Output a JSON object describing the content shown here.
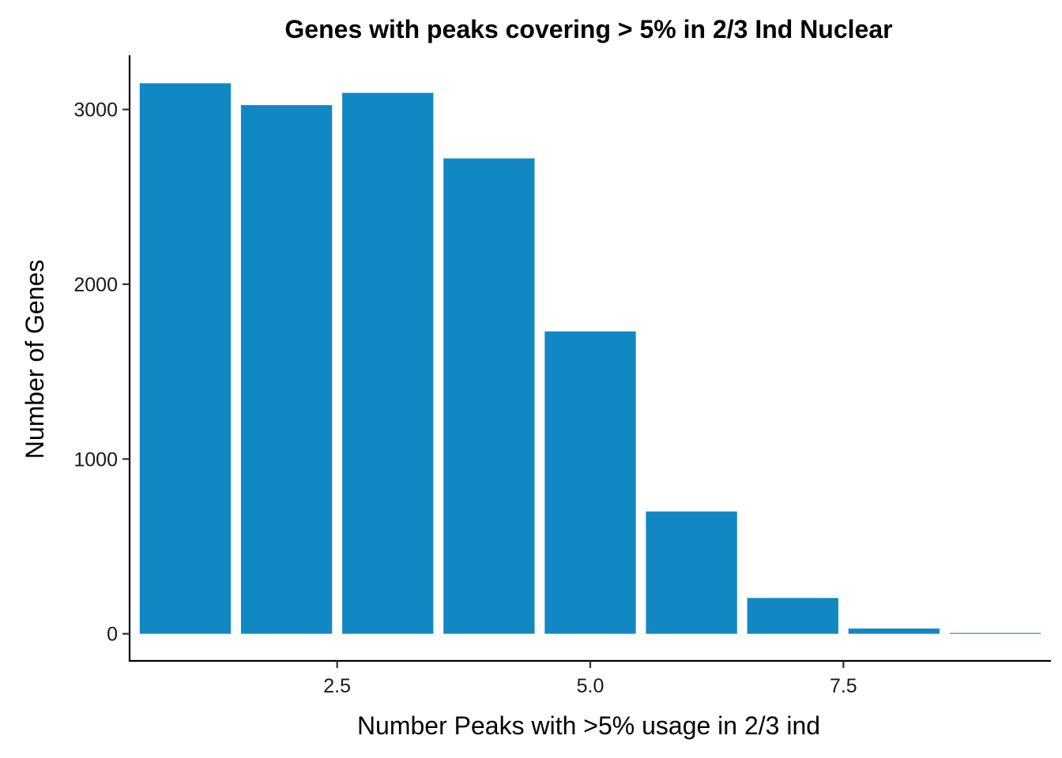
{
  "chart_data": {
    "type": "bar",
    "title": "Genes with peaks covering > 5% in 2/3 Ind Nuclear",
    "xlabel": "Number Peaks with >5% usage in 2/3 ind",
    "ylabel": "Number of Genes",
    "x": [
      1,
      2,
      3,
      4,
      5,
      6,
      7,
      8,
      9
    ],
    "values": [
      3150,
      3025,
      3095,
      2720,
      1730,
      700,
      205,
      30,
      5
    ],
    "xlim": [
      0.45,
      9.55
    ],
    "ylim": [
      -155,
      3310
    ],
    "xticks": [
      2.5,
      5.0,
      7.5
    ],
    "xtick_labels": [
      "2.5",
      "5.0",
      "7.5"
    ],
    "yticks": [
      0,
      1000,
      2000,
      3000
    ],
    "ytick_labels": [
      "0",
      "1000",
      "2000",
      "3000"
    ],
    "bar_width": 0.9,
    "bar_color": "#1188c4",
    "grid": false,
    "legend": "none"
  }
}
